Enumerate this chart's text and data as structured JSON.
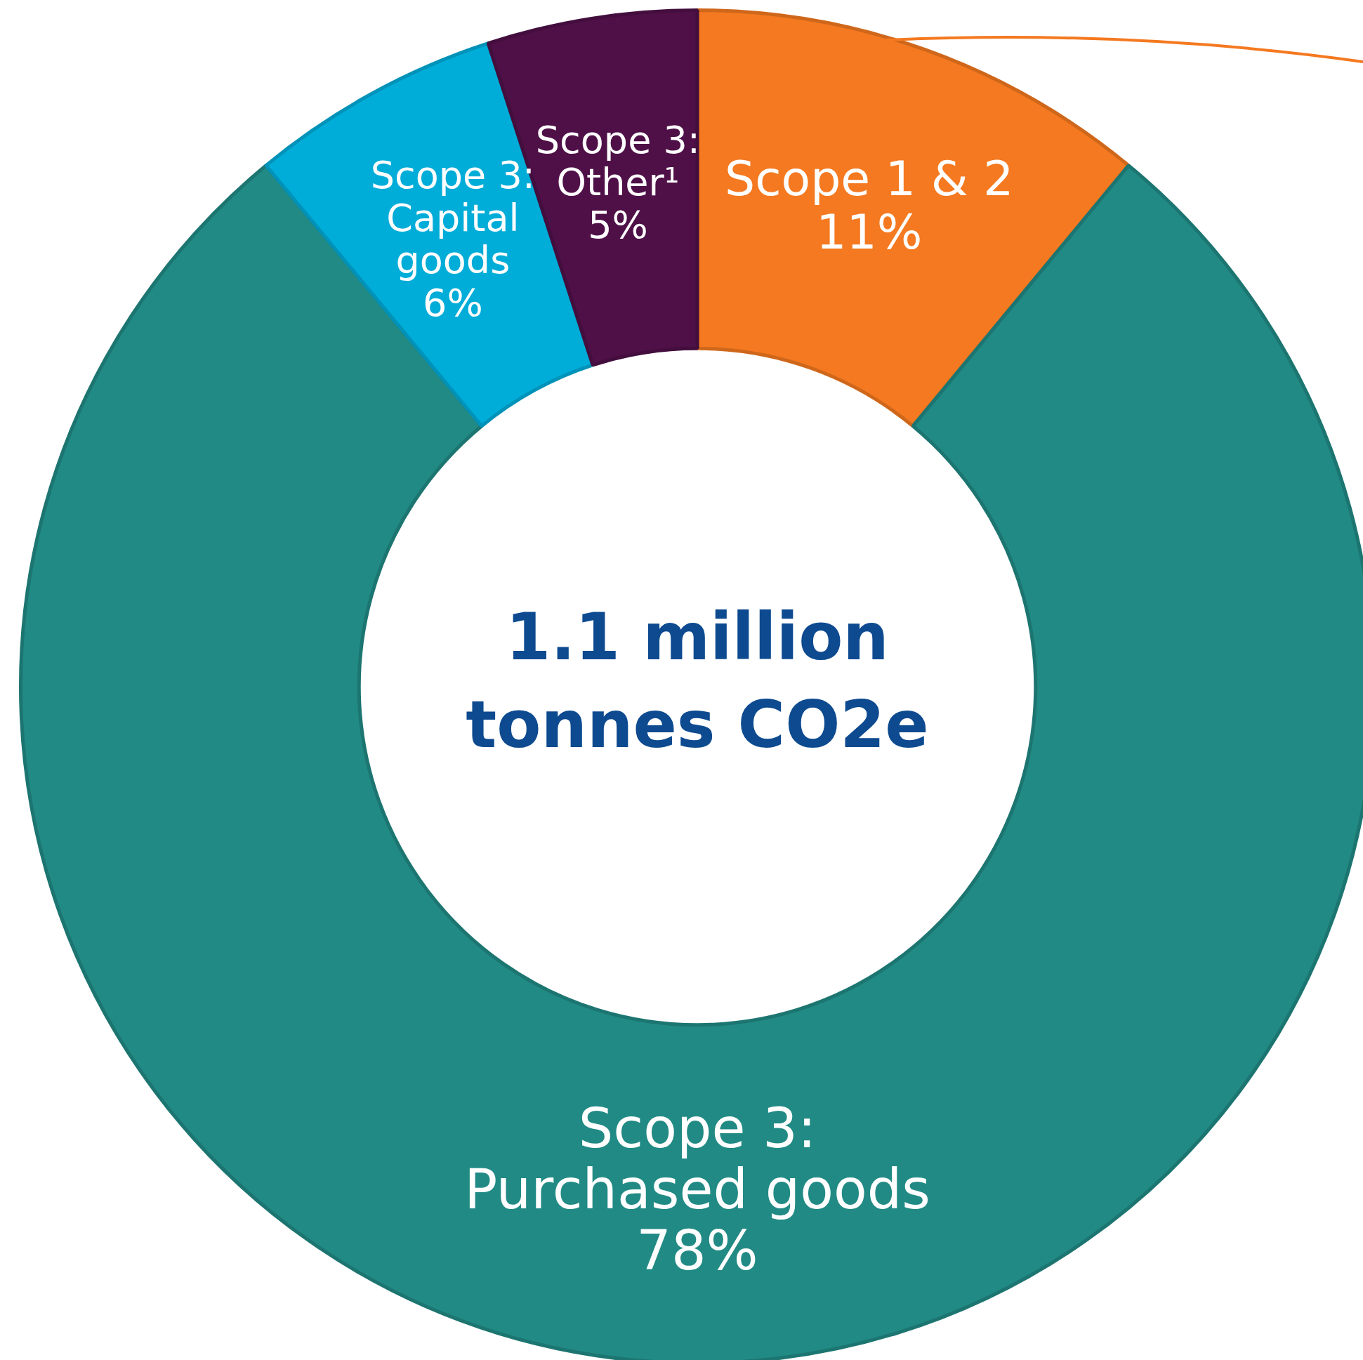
{
  "chart_data": {
    "type": "donut",
    "title": "1.1 million tonnes CO2e",
    "categories": [
      "Scope 1 & 2",
      "Scope 3: Purchased goods",
      "Scope 3: Capital goods",
      "Scope 3: Other¹"
    ],
    "values": [
      11,
      78,
      6,
      5
    ],
    "value_labels": [
      "11%",
      "78%",
      "6%",
      "5%"
    ],
    "colors": [
      "#f47920",
      "#218a84",
      "#00acd8",
      "#4f1048"
    ],
    "legend": false
  }
}
